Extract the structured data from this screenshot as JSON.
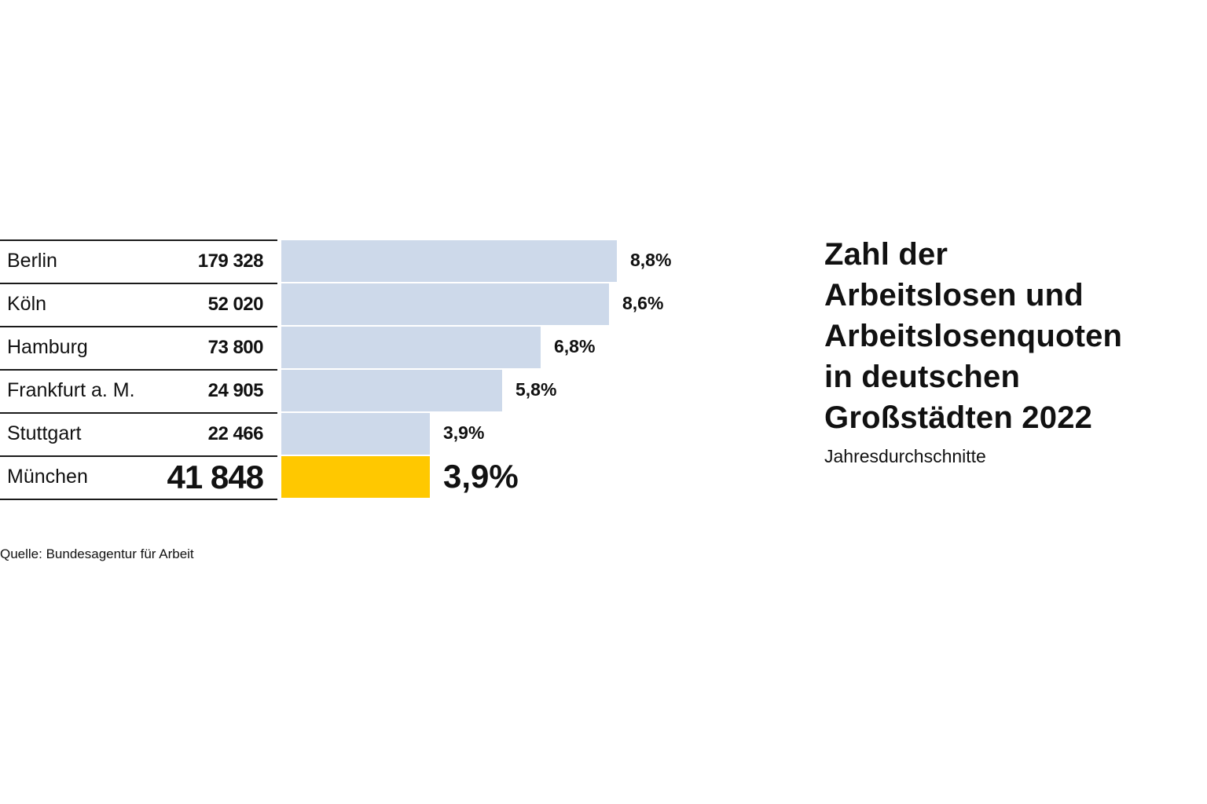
{
  "chart_data": {
    "type": "bar",
    "orientation": "horizontal",
    "title": "Zahl der Arbeitslosen und Arbeitslosenquoten in deutschen Großstädten 2022",
    "title_lines": [
      "Zahl der",
      "Arbeitslosen und",
      "Arbeitslosenquoten",
      "in deutschen",
      "Großstädten 2022"
    ],
    "subtitle": "Jahresdurchschnitte",
    "source": "Quelle: Bundesagentur für Arbeit",
    "xlim": [
      0,
      8.8
    ],
    "grid": false,
    "legend": "none",
    "colors": {
      "default_bar": "#cdd9ea",
      "highlight_bar": "#ffc800",
      "text": "#111111",
      "rule": "#1a1a1a"
    },
    "rows": [
      {
        "city": "Berlin",
        "count": "179 328",
        "rate": 8.8,
        "rate_label": "8,8%",
        "highlight": false
      },
      {
        "city": "Köln",
        "count": "52 020",
        "rate": 8.6,
        "rate_label": "8,6%",
        "highlight": false
      },
      {
        "city": "Hamburg",
        "count": "73 800",
        "rate": 6.8,
        "rate_label": "6,8%",
        "highlight": false
      },
      {
        "city": "Frankfurt a. M.",
        "count": "24 905",
        "rate": 5.8,
        "rate_label": "5,8%",
        "highlight": false
      },
      {
        "city": "Stuttgart",
        "count": "22 466",
        "rate": 3.9,
        "rate_label": "3,9%",
        "highlight": false
      },
      {
        "city": "München",
        "count": "41 848",
        "rate": 3.9,
        "rate_label": "3,9%",
        "highlight": true
      }
    ]
  }
}
